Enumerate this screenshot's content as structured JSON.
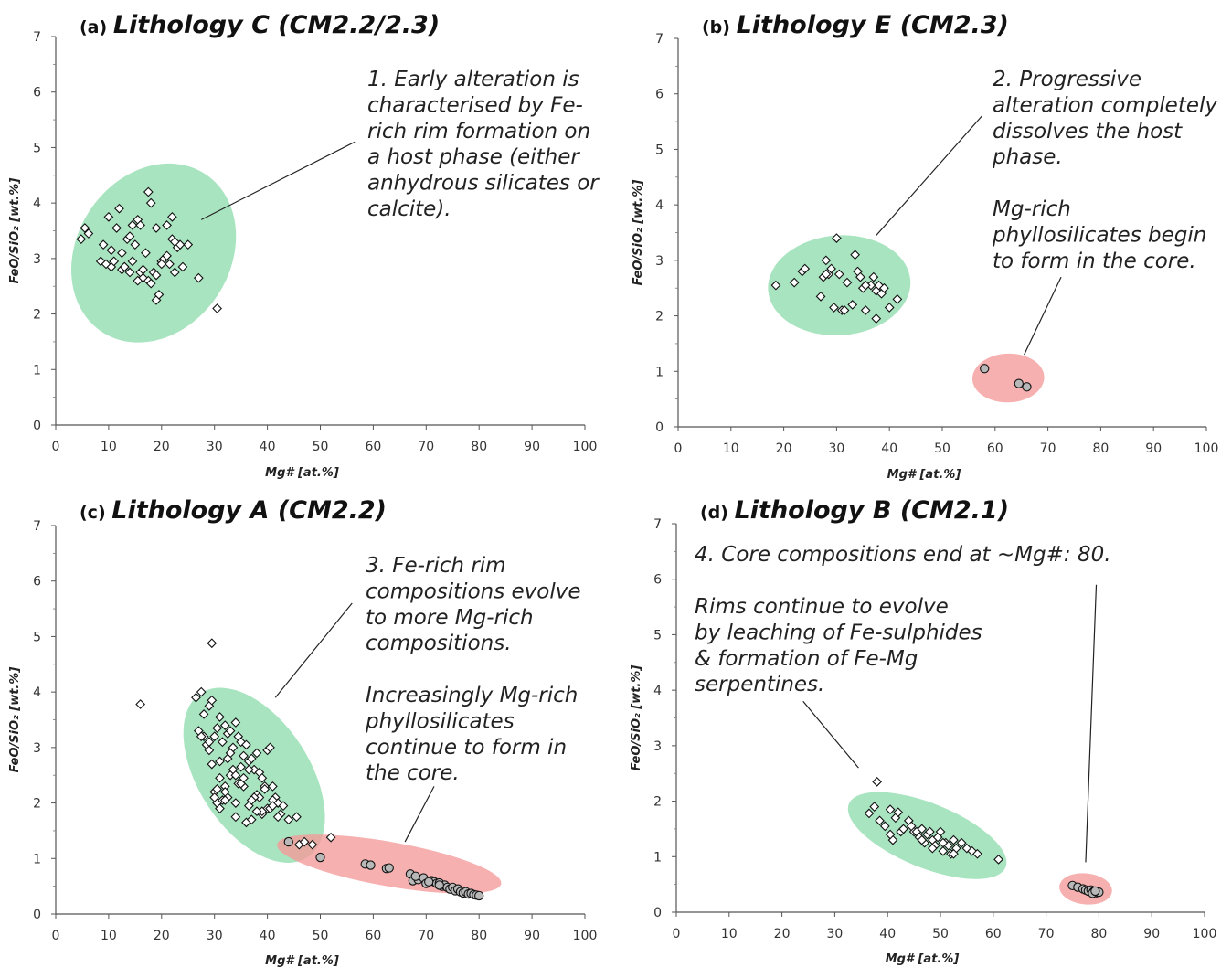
{
  "chart_data": [
    {
      "type": "scatter",
      "panel": "(a)",
      "title": "Lithology C (CM2.2/2.3)",
      "xlabel": "Mg# [at.%]",
      "ylabel": "FeO/SiO₂ [wt.%]",
      "xlim": [
        0,
        100
      ],
      "ylim": [
        0,
        7
      ],
      "xticks": [
        "0",
        "10",
        "20",
        "30",
        "40",
        "50",
        "60",
        "70",
        "80",
        "90",
        "100"
      ],
      "yticks": [
        "0",
        "1",
        "2",
        "3",
        "4",
        "5",
        "6",
        "7"
      ],
      "grid": false,
      "legend": "none",
      "regions": [
        {
          "kind": "rim",
          "color": "#8fdcae",
          "cx": 18.5,
          "cy": 3.1,
          "rx": 14.5,
          "ry": 1.7,
          "angle": 33
        }
      ],
      "annotations": [
        {
          "lines": [
            "1. Early alteration is",
            "characterised by Fe-",
            "rich rim formation on",
            "a host phase (either",
            "anhydrous silicates or",
            "calcite)."
          ],
          "pointer": {
            "from": [
              56.5,
              5.1
            ],
            "to": [
              27.5,
              3.7
            ]
          }
        }
      ],
      "series": [
        {
          "marker": "diamond",
          "x": [
            4.8,
            5.5,
            6.2,
            8.5,
            9.0,
            10.0,
            11.5,
            12.0,
            10.5,
            12.5,
            13.5,
            14.0,
            15.0,
            14.5,
            15.5,
            16.0,
            17.5,
            18.0,
            19.0,
            20.0,
            21.0,
            22.0,
            23.0,
            9.5,
            10.5,
            11.0,
            12.5,
            13.0,
            14.5,
            16.0,
            16.5,
            17.0,
            18.5,
            19.0,
            19.5,
            20.5,
            21.0,
            22.0,
            22.5,
            23.5,
            24.0,
            25.0,
            27.0,
            30.5,
            13.0,
            14.0,
            15.5,
            16.5,
            17.5,
            18.0,
            19.0,
            20.0,
            21.5,
            22.5
          ],
          "y": [
            3.35,
            3.55,
            3.45,
            2.95,
            3.25,
            3.75,
            3.55,
            3.9,
            2.85,
            2.8,
            3.35,
            3.4,
            3.25,
            3.6,
            3.7,
            3.6,
            4.2,
            4.0,
            3.55,
            2.95,
            3.6,
            3.75,
            3.2,
            2.9,
            3.15,
            2.95,
            3.1,
            2.85,
            2.95,
            2.75,
            2.65,
            3.1,
            2.75,
            2.25,
            2.35,
            3.0,
            3.05,
            3.35,
            2.75,
            3.25,
            2.85,
            3.25,
            2.65,
            2.1,
            2.85,
            2.75,
            2.6,
            2.8,
            2.6,
            2.55,
            2.7,
            2.9,
            2.9,
            3.3
          ]
        }
      ]
    },
    {
      "type": "scatter",
      "panel": "(b)",
      "title": "Lithology E (CM2.3)",
      "xlabel": "Mg# [at.%]",
      "ylabel": "FeO/SiO₂ [wt.%]",
      "xlim": [
        0,
        100
      ],
      "ylim": [
        0,
        7
      ],
      "xticks": [
        "0",
        "10",
        "20",
        "30",
        "40",
        "50",
        "60",
        "70",
        "80",
        "90",
        "100"
      ],
      "yticks": [
        "0",
        "1",
        "2",
        "3",
        "4",
        "5",
        "6",
        "7"
      ],
      "grid": false,
      "legend": "none",
      "regions": [
        {
          "kind": "rim",
          "color": "#8fdcae",
          "cx": 30.5,
          "cy": 2.55,
          "rx": 13.5,
          "ry": 0.9,
          "angle": -4
        },
        {
          "kind": "core",
          "color": "#f59a9a",
          "cx": 62.5,
          "cy": 0.88,
          "rx": 6.8,
          "ry": 0.44,
          "angle": -2
        }
      ],
      "annotations": [
        {
          "lines": [
            "2. Progressive",
            "alteration completely",
            "dissolves the host",
            "phase."
          ],
          "pointer": {
            "from": [
              57.5,
              5.6
            ],
            "to": [
              37.5,
              3.45
            ]
          }
        },
        {
          "lines": [
            "Mg-rich",
            "phyllosilicates begin",
            "to form in the core."
          ],
          "pointer": {
            "from": [
              72.5,
              2.7
            ],
            "to": [
              65.5,
              1.3
            ]
          }
        }
      ],
      "series": [
        {
          "marker": "diamond",
          "x": [
            18.5,
            22.0,
            23.5,
            24.0,
            27.0,
            27.5,
            28.0,
            28.5,
            29.0,
            29.5,
            30.0,
            31.0,
            31.5,
            32.0,
            33.0,
            34.0,
            34.5,
            35.0,
            35.5,
            36.5,
            37.0,
            37.5,
            38.0,
            38.5,
            39.0,
            40.0,
            41.5,
            28.0,
            30.5,
            33.5,
            35.5,
            37.5
          ],
          "y": [
            2.55,
            2.6,
            2.8,
            2.85,
            2.35,
            2.7,
            3.0,
            2.75,
            2.85,
            2.15,
            3.4,
            2.1,
            2.1,
            2.6,
            2.2,
            2.8,
            2.7,
            2.5,
            2.1,
            2.55,
            2.7,
            2.45,
            2.55,
            2.4,
            2.5,
            2.15,
            2.3,
            2.75,
            2.75,
            3.1,
            2.55,
            1.95
          ]
        },
        {
          "marker": "circle",
          "x": [
            58.0,
            64.5,
            66.0
          ],
          "y": [
            1.05,
            0.78,
            0.72
          ]
        }
      ]
    },
    {
      "type": "scatter",
      "panel": "(c)",
      "title": "Lithology A  (CM2.2)",
      "xlabel": "Mg# [at.%]",
      "ylabel": "FeO/SiO₂ [wt.%]",
      "xlim": [
        0,
        100
      ],
      "ylim": [
        0,
        7
      ],
      "xticks": [
        "0",
        "10",
        "20",
        "30",
        "40",
        "50",
        "60",
        "70",
        "80",
        "90",
        "100"
      ],
      "yticks": [
        "0",
        "1",
        "2",
        "3",
        "4",
        "5",
        "6",
        "7"
      ],
      "grid": false,
      "legend": "none",
      "regions": [
        {
          "kind": "rim",
          "color": "#8fdcae",
          "cx": 37.5,
          "cy": 2.5,
          "rx": 18.5,
          "ry": 1.0,
          "angle": 57
        },
        {
          "kind": "core",
          "color": "#f59a9a",
          "cx": 63.0,
          "cy": 0.9,
          "rx": 21.5,
          "ry": 0.4,
          "angle": 10
        }
      ],
      "annotations": [
        {
          "lines": [
            "3. Fe-rich rim",
            "compositions evolve",
            "to more Mg-rich",
            "compositions."
          ],
          "pointer": {
            "from": [
              56.0,
              5.6
            ],
            "to": [
              41.5,
              3.9
            ]
          }
        },
        {
          "lines": [
            "Increasingly Mg-rich",
            "phyllosilicates",
            "continue to form in",
            "the core."
          ],
          "pointer": {
            "from": [
              71.5,
              2.3
            ],
            "to": [
              66.0,
              1.3
            ]
          }
        }
      ],
      "series": [
        {
          "marker": "diamond",
          "x": [
            16.0,
            29.5,
            26.5,
            27.5,
            28.0,
            29.0,
            29.5,
            30.0,
            30.5,
            31.0,
            31.5,
            32.0,
            32.5,
            33.0,
            33.5,
            34.0,
            34.5,
            35.0,
            35.5,
            36.0,
            36.5,
            37.0,
            37.5,
            38.0,
            38.5,
            39.0,
            39.5,
            40.0,
            40.5,
            41.0,
            41.5,
            42.0,
            43.0,
            27.0,
            28.0,
            29.5,
            30.0,
            31.0,
            32.5,
            33.0,
            34.5,
            35.5,
            36.5,
            38.0,
            39.0,
            40.0,
            30.5,
            31.5,
            32.0,
            33.5,
            34.0,
            35.0,
            36.0,
            37.0,
            38.5,
            39.5,
            41.0,
            42.5,
            44.0,
            45.5,
            28.5,
            29.0,
            30.0,
            31.0,
            32.0,
            33.0,
            34.0,
            35.0,
            36.5,
            37.5,
            39.0,
            40.5,
            31.0,
            32.5,
            34.0,
            35.5,
            37.0,
            38.0,
            41.0,
            42.0,
            27.5,
            29.0,
            30.5,
            32.0
          ],
          "y": [
            3.78,
            4.88,
            3.9,
            4.0,
            3.6,
            3.75,
            3.85,
            3.2,
            3.35,
            3.55,
            3.1,
            3.4,
            3.25,
            3.3,
            3.0,
            3.45,
            3.2,
            3.1,
            2.85,
            3.05,
            2.75,
            2.8,
            2.6,
            2.9,
            2.55,
            2.45,
            2.3,
            2.95,
            3.0,
            2.3,
            2.1,
            2.0,
            1.95,
            3.3,
            3.2,
            2.7,
            2.2,
            2.45,
            2.1,
            2.9,
            2.35,
            2.3,
            2.6,
            2.15,
            1.8,
            1.9,
            2.0,
            2.05,
            2.3,
            2.6,
            1.75,
            2.65,
            1.65,
            1.7,
            2.1,
            2.25,
            2.05,
            1.8,
            1.7,
            1.75,
            3.05,
            3.1,
            2.1,
            1.9,
            2.2,
            2.5,
            2.0,
            2.35,
            1.95,
            2.1,
            1.85,
            1.9,
            2.75,
            2.8,
            2.5,
            2.45,
            2.05,
            1.85,
            1.95,
            1.75,
            3.2,
            2.95,
            2.25,
            2.05
          ]
        },
        {
          "marker": "circle",
          "x": [
            44.0,
            50.0,
            58.5,
            59.5,
            62.5,
            63.0,
            67.0,
            67.5,
            68.5,
            69.5,
            70.0,
            71.0,
            71.5,
            72.0,
            72.5,
            73.0,
            73.5,
            74.0,
            74.5,
            75.0,
            75.5,
            76.0,
            76.5,
            77.0,
            77.5,
            78.0,
            78.5,
            79.0,
            79.5,
            80.0,
            68.0,
            70.5,
            72.5
          ],
          "y": [
            1.3,
            1.02,
            0.9,
            0.88,
            0.82,
            0.83,
            0.72,
            0.6,
            0.62,
            0.65,
            0.55,
            0.6,
            0.58,
            0.55,
            0.56,
            0.5,
            0.52,
            0.48,
            0.45,
            0.48,
            0.42,
            0.45,
            0.4,
            0.38,
            0.4,
            0.36,
            0.37,
            0.35,
            0.34,
            0.33,
            0.68,
            0.58,
            0.52
          ]
        },
        {
          "marker": "diamond",
          "x": [
            46.0,
            48.5,
            52.0,
            47.0
          ],
          "y": [
            1.25,
            1.25,
            1.38,
            1.3
          ]
        }
      ]
    },
    {
      "type": "scatter",
      "panel": "(d)",
      "title": "Lithology B (CM2.1)",
      "xlabel": "Mg# [at.%]",
      "ylabel": "FeO/SiO₂ [wt.%]",
      "xlim": [
        0,
        100
      ],
      "ylim": [
        0,
        7
      ],
      "xticks": [
        "0",
        "10",
        "20",
        "30",
        "40",
        "50",
        "60",
        "70",
        "80",
        "90",
        "100"
      ],
      "yticks": [
        "0",
        "1",
        "2",
        "3",
        "4",
        "5",
        "6",
        "7"
      ],
      "grid": false,
      "legend": "none",
      "regions": [
        {
          "kind": "rim",
          "color": "#8fdcae",
          "cx": 47.5,
          "cy": 1.38,
          "rx": 16.0,
          "ry": 0.58,
          "angle": 22
        },
        {
          "kind": "core",
          "color": "#f59a9a",
          "cx": 77.5,
          "cy": 0.42,
          "rx": 5.0,
          "ry": 0.28,
          "angle": 6
        }
      ],
      "annotations": [
        {
          "lines": [
            "4. Core compositions end at ~Mg#: 80."
          ],
          "pointer": {
            "from": [
              79.5,
              5.9
            ],
            "to": [
              77.5,
              0.9
            ]
          }
        },
        {
          "lines": [
            "Rims continue to evolve",
            "by leaching of Fe-sulphides",
            "& formation of Fe-Mg",
            "serpentines."
          ],
          "pointer": {
            "from": [
              24.0,
              3.8
            ],
            "to": [
              34.5,
              2.6
            ]
          }
        }
      ],
      "series": [
        {
          "marker": "diamond",
          "x": [
            38.0,
            36.5,
            37.5,
            38.5,
            39.5,
            40.5,
            41.0,
            41.5,
            42.0,
            42.5,
            43.0,
            44.0,
            45.0,
            45.5,
            46.0,
            46.5,
            47.0,
            47.5,
            48.0,
            48.5,
            49.0,
            49.5,
            50.0,
            50.5,
            51.0,
            51.5,
            52.0,
            52.5,
            53.0,
            54.0,
            55.0,
            56.0,
            57.0,
            61.0,
            40.5,
            44.5,
            46.5,
            48.5,
            50.5,
            52.5
          ],
          "y": [
            2.35,
            1.78,
            1.9,
            1.65,
            1.55,
            1.85,
            1.3,
            1.7,
            1.8,
            1.45,
            1.5,
            1.65,
            1.45,
            1.45,
            1.35,
            1.5,
            1.25,
            1.4,
            1.45,
            1.3,
            1.2,
            1.35,
            1.45,
            1.1,
            1.25,
            1.2,
            1.05,
            1.3,
            1.15,
            1.25,
            1.15,
            1.1,
            1.05,
            0.95,
            1.4,
            1.55,
            1.3,
            1.15,
            1.25,
            1.05
          ]
        },
        {
          "marker": "circle",
          "x": [
            75.0,
            76.0,
            77.0,
            77.5,
            78.0,
            78.5,
            79.0,
            79.5,
            80.0,
            78.8,
            79.3
          ],
          "y": [
            0.48,
            0.45,
            0.42,
            0.4,
            0.38,
            0.4,
            0.37,
            0.35,
            0.36,
            0.34,
            0.38
          ]
        }
      ]
    }
  ]
}
